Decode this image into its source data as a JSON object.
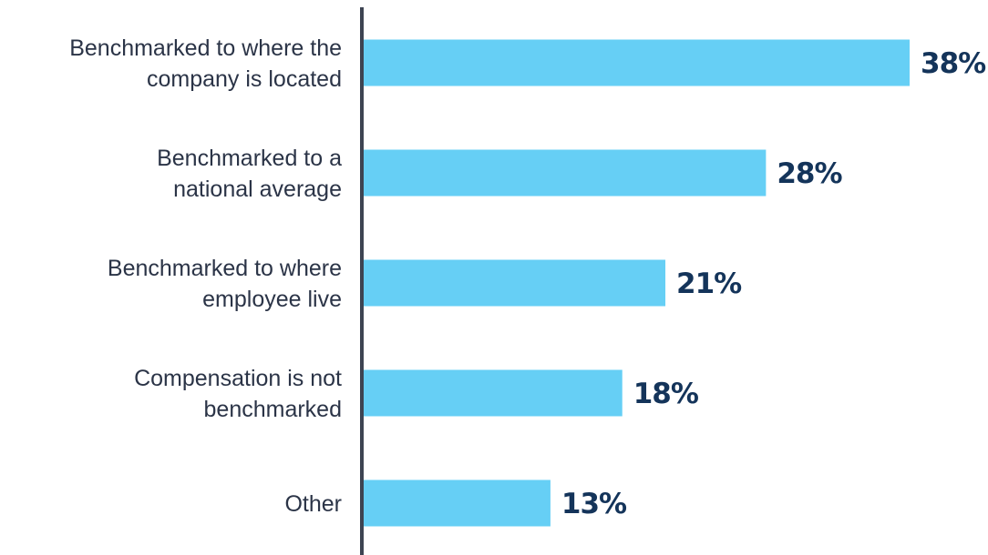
{
  "chart_data": {
    "type": "bar",
    "orientation": "horizontal",
    "categories": [
      [
        "Benchmarked to where the",
        "company is located"
      ],
      [
        "Benchmarked to a",
        "national average"
      ],
      [
        "Benchmarked to where",
        "employee live"
      ],
      [
        "Compensation is not",
        "benchmarked"
      ],
      [
        "Other"
      ]
    ],
    "values": [
      38,
      28,
      21,
      18,
      13
    ],
    "value_labels": [
      "38%",
      "28%",
      "21%",
      "18%",
      "13%"
    ],
    "unit": "%",
    "xlim": [
      0,
      38
    ],
    "grid": false,
    "legend": "none"
  },
  "colors": {
    "bar": "#66cff5",
    "axis": "#3d4452",
    "category_text": "#2b3447",
    "value_text": "#14345a"
  }
}
